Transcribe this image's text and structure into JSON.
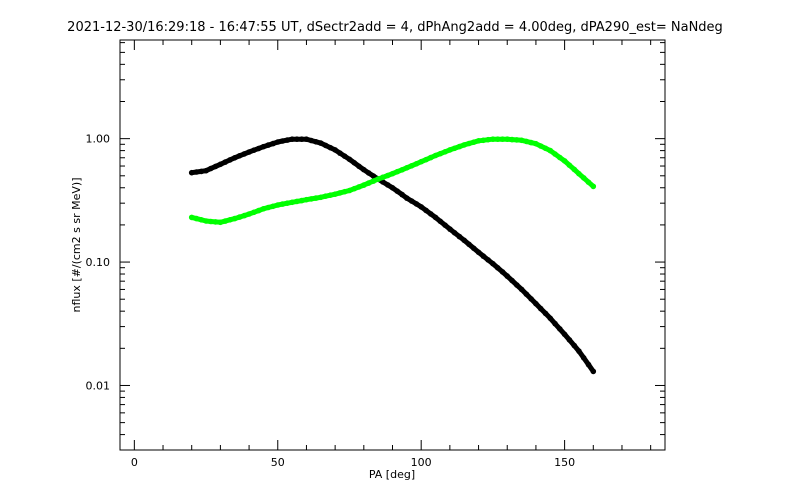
{
  "chart_data": {
    "type": "scatter",
    "title": "2021-12-30/16:29:18 - 16:47:55 UT, dSectr2add = 4, dPhAng2add = 4.00deg, dPA290_est=   NaNdeg",
    "xlabel": "PA [deg]",
    "ylabel": "nflux [#/(cm2 s sr MeV)]",
    "xlim": [
      -5,
      185
    ],
    "ylim": [
      0.003,
      6.3
    ],
    "yscale": "log",
    "x_ticks": [
      0,
      50,
      100,
      150
    ],
    "x_tick_labels": [
      "0",
      "50",
      "100",
      "150"
    ],
    "y_ticks": [
      0.01,
      0.1,
      1.0
    ],
    "y_tick_labels": [
      "0.01",
      "0.10",
      "1.00"
    ],
    "grid": false,
    "legend": "none",
    "series": [
      {
        "color": "#000000",
        "x": [
          20,
          25,
          30,
          35,
          40,
          45,
          50,
          55,
          60,
          65,
          70,
          75,
          80,
          85,
          90,
          95,
          100,
          105,
          110,
          115,
          120,
          125,
          130,
          135,
          140,
          145,
          150,
          155,
          160
        ],
        "y": [
          0.53,
          0.55,
          0.62,
          0.7,
          0.78,
          0.86,
          0.94,
          0.99,
          0.99,
          0.92,
          0.81,
          0.68,
          0.56,
          0.47,
          0.4,
          0.33,
          0.28,
          0.23,
          0.185,
          0.15,
          0.12,
          0.097,
          0.077,
          0.06,
          0.046,
          0.035,
          0.026,
          0.019,
          0.013
        ]
      },
      {
        "color": "#00ff00",
        "x": [
          20,
          25,
          30,
          35,
          40,
          45,
          50,
          55,
          60,
          65,
          70,
          75,
          80,
          85,
          90,
          95,
          100,
          105,
          110,
          115,
          120,
          125,
          130,
          135,
          140,
          145,
          150,
          155,
          160
        ],
        "y": [
          0.23,
          0.215,
          0.21,
          0.225,
          0.245,
          0.27,
          0.29,
          0.305,
          0.32,
          0.335,
          0.355,
          0.38,
          0.42,
          0.47,
          0.52,
          0.58,
          0.65,
          0.73,
          0.81,
          0.89,
          0.96,
          0.99,
          0.99,
          0.97,
          0.91,
          0.8,
          0.66,
          0.52,
          0.41
        ]
      }
    ]
  }
}
